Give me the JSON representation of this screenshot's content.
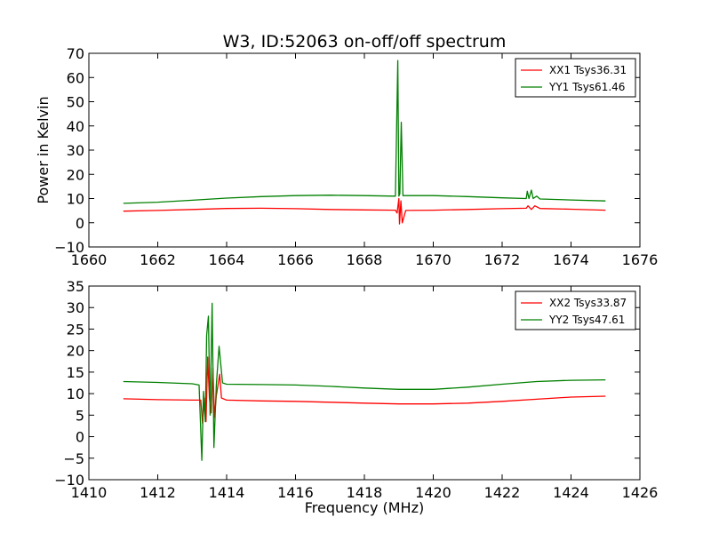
{
  "figure_title": "W3, ID:52063 on-off/off spectrum",
  "colors": {
    "xx": "#ff0000",
    "yy": "#008000"
  },
  "chart_data": [
    {
      "type": "line",
      "title": "W3, ID:52063 on-off/off spectrum",
      "xlabel": "",
      "ylabel": "Power in Kelvin",
      "xlim": [
        1660,
        1676
      ],
      "ylim": [
        -10,
        70
      ],
      "xticks": [
        "1660",
        "1662",
        "1664",
        "1666",
        "1668",
        "1670",
        "1672",
        "1674",
        "1676"
      ],
      "yticks": [
        "−10",
        "0",
        "10",
        "20",
        "30",
        "40",
        "50",
        "60",
        "70"
      ],
      "legend_position": "top-right",
      "series": [
        {
          "name": "XX1 Tsys36.31",
          "color": "#ff0000",
          "points": [
            [
              1661.0,
              4.8
            ],
            [
              1662.0,
              5.1
            ],
            [
              1663.0,
              5.5
            ],
            [
              1664.0,
              5.9
            ],
            [
              1665.0,
              6.0
            ],
            [
              1666.0,
              5.8
            ],
            [
              1667.0,
              5.5
            ],
            [
              1668.0,
              5.3
            ],
            [
              1668.9,
              5.2
            ],
            [
              1668.95,
              4.0
            ],
            [
              1669.0,
              10.0
            ],
            [
              1669.02,
              -0.5
            ],
            [
              1669.06,
              9.0
            ],
            [
              1669.1,
              0.0
            ],
            [
              1669.2,
              5.1
            ],
            [
              1670.0,
              5.2
            ],
            [
              1671.0,
              5.5
            ],
            [
              1672.0,
              5.8
            ],
            [
              1672.7,
              6.0
            ],
            [
              1672.75,
              7.0
            ],
            [
              1672.85,
              5.5
            ],
            [
              1672.95,
              7.0
            ],
            [
              1673.1,
              5.9
            ],
            [
              1674.0,
              5.6
            ],
            [
              1675.0,
              5.2
            ]
          ]
        },
        {
          "name": "YY1 Tsys61.46",
          "color": "#008000",
          "points": [
            [
              1661.0,
              8.0
            ],
            [
              1662.0,
              8.5
            ],
            [
              1663.0,
              9.3
            ],
            [
              1664.0,
              10.2
            ],
            [
              1665.0,
              10.8
            ],
            [
              1666.0,
              11.2
            ],
            [
              1667.0,
              11.4
            ],
            [
              1668.0,
              11.2
            ],
            [
              1668.9,
              11.0
            ],
            [
              1668.97,
              67.0
            ],
            [
              1669.0,
              11.0
            ],
            [
              1669.03,
              12.0
            ],
            [
              1669.07,
              41.5
            ],
            [
              1669.12,
              11.2
            ],
            [
              1670.0,
              11.2
            ],
            [
              1671.0,
              10.8
            ],
            [
              1672.0,
              10.3
            ],
            [
              1672.7,
              10.0
            ],
            [
              1672.73,
              13.0
            ],
            [
              1672.78,
              10.0
            ],
            [
              1672.85,
              13.5
            ],
            [
              1672.9,
              10.0
            ],
            [
              1673.0,
              11.0
            ],
            [
              1673.1,
              9.8
            ],
            [
              1674.0,
              9.4
            ],
            [
              1675.0,
              9.0
            ]
          ]
        }
      ]
    },
    {
      "type": "line",
      "title": "",
      "xlabel": "Frequency (MHz)",
      "ylabel": "",
      "xlim": [
        1410,
        1426
      ],
      "ylim": [
        -10,
        35
      ],
      "xticks": [
        "1410",
        "1412",
        "1414",
        "1416",
        "1418",
        "1420",
        "1422",
        "1424",
        "1426"
      ],
      "yticks": [
        "−10",
        "−5",
        "0",
        "5",
        "10",
        "15",
        "20",
        "25",
        "30",
        "35"
      ],
      "legend_position": "top-right",
      "series": [
        {
          "name": "XX2 Tsys33.87",
          "color": "#ff0000",
          "points": [
            [
              1411.0,
              8.8
            ],
            [
              1412.0,
              8.6
            ],
            [
              1413.0,
              8.5
            ],
            [
              1413.25,
              8.5
            ],
            [
              1413.3,
              3.0
            ],
            [
              1413.35,
              9.0
            ],
            [
              1413.4,
              3.5
            ],
            [
              1413.45,
              18.5
            ],
            [
              1413.5,
              9.0
            ],
            [
              1413.55,
              5.5
            ],
            [
              1413.6,
              16.0
            ],
            [
              1413.65,
              4.5
            ],
            [
              1413.7,
              9.5
            ],
            [
              1413.8,
              14.5
            ],
            [
              1413.85,
              9.0
            ],
            [
              1414.0,
              8.5
            ],
            [
              1415.0,
              8.3
            ],
            [
              1416.0,
              8.2
            ],
            [
              1417.0,
              8.0
            ],
            [
              1418.0,
              7.8
            ],
            [
              1419.0,
              7.6
            ],
            [
              1420.0,
              7.6
            ],
            [
              1421.0,
              7.8
            ],
            [
              1422.0,
              8.2
            ],
            [
              1423.0,
              8.7
            ],
            [
              1424.0,
              9.2
            ],
            [
              1425.0,
              9.4
            ]
          ]
        },
        {
          "name": "YY2 Tsys47.61",
          "color": "#008000",
          "points": [
            [
              1411.0,
              12.8
            ],
            [
              1412.0,
              12.6
            ],
            [
              1413.0,
              12.3
            ],
            [
              1413.2,
              12.0
            ],
            [
              1413.28,
              -5.5
            ],
            [
              1413.33,
              10.5
            ],
            [
              1413.38,
              3.5
            ],
            [
              1413.42,
              23.5
            ],
            [
              1413.47,
              28.0
            ],
            [
              1413.52,
              5.0
            ],
            [
              1413.58,
              31.0
            ],
            [
              1413.63,
              -2.5
            ],
            [
              1413.7,
              12.0
            ],
            [
              1413.78,
              21.0
            ],
            [
              1413.88,
              12.5
            ],
            [
              1414.0,
              12.2
            ],
            [
              1415.0,
              12.1
            ],
            [
              1416.0,
              12.0
            ],
            [
              1417.0,
              11.7
            ],
            [
              1418.0,
              11.3
            ],
            [
              1419.0,
              11.0
            ],
            [
              1420.0,
              11.0
            ],
            [
              1421.0,
              11.5
            ],
            [
              1422.0,
              12.2
            ],
            [
              1423.0,
              12.8
            ],
            [
              1424.0,
              13.1
            ],
            [
              1425.0,
              13.2
            ]
          ]
        }
      ]
    }
  ]
}
